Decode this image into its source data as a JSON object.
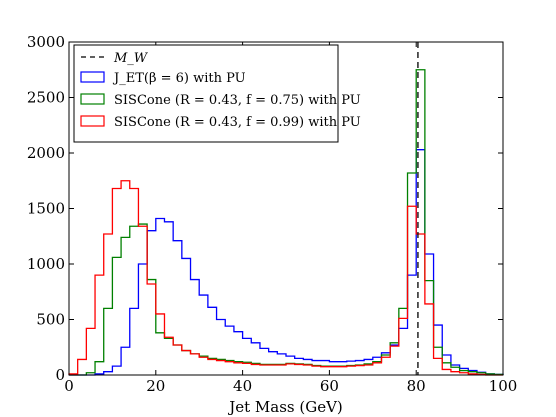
{
  "chart_data": {
    "type": "histogram",
    "xlabel": "Jet Mass (GeV)",
    "ylabel": "",
    "xlim": [
      0,
      100
    ],
    "ylim": [
      0,
      3000
    ],
    "x_ticks": [
      "0",
      "20",
      "40",
      "60",
      "80",
      "100"
    ],
    "y_ticks": [
      "0",
      "500",
      "1000",
      "1500",
      "2000",
      "2500",
      "3000"
    ],
    "grid": false,
    "legend_position": "top-left",
    "bin_width": 2,
    "bin_edges_start": 0,
    "reference_line": {
      "name": "M_W",
      "x": 80.4,
      "style": "dashed",
      "color": "#000000"
    },
    "series": [
      {
        "name": "J_ET(β = 6) with PU",
        "color": "#0000ff",
        "values": [
          0,
          0,
          0,
          10,
          30,
          80,
          250,
          600,
          1000,
          1300,
          1410,
          1380,
          1210,
          1050,
          860,
          720,
          610,
          500,
          440,
          390,
          330,
          290,
          240,
          210,
          190,
          170,
          150,
          140,
          130,
          130,
          120,
          120,
          125,
          130,
          140,
          160,
          200,
          270,
          420,
          900,
          2030,
          1090,
          450,
          180,
          90,
          60,
          40,
          25,
          10,
          5
        ]
      },
      {
        "name": "SISCone (R = 0.43, f = 0.75) with PU",
        "color": "#008000",
        "values": [
          0,
          0,
          20,
          120,
          600,
          1060,
          1240,
          1340,
          1360,
          860,
          380,
          330,
          270,
          220,
          190,
          170,
          150,
          140,
          130,
          120,
          115,
          105,
          95,
          95,
          95,
          105,
          100,
          95,
          85,
          80,
          80,
          80,
          85,
          90,
          100,
          120,
          180,
          290,
          600,
          1820,
          2750,
          850,
          250,
          110,
          70,
          40,
          30,
          20,
          10,
          5
        ]
      },
      {
        "name": "SISCone (R = 0.43, f = 0.99) with PU",
        "color": "#ff0000",
        "values": [
          10,
          140,
          420,
          900,
          1270,
          1680,
          1750,
          1680,
          1340,
          820,
          550,
          340,
          270,
          220,
          190,
          160,
          140,
          130,
          120,
          110,
          105,
          95,
          90,
          90,
          90,
          100,
          95,
          90,
          80,
          75,
          75,
          75,
          80,
          85,
          90,
          110,
          160,
          260,
          510,
          1520,
          1270,
          640,
          150,
          50,
          30,
          20,
          10,
          5,
          0,
          0
        ]
      }
    ]
  },
  "legend": {
    "entries": [
      {
        "label": "M_W",
        "color": "#000000",
        "style": "dashed"
      },
      {
        "label": "J_ET(β = 6) with PU",
        "color": "#0000ff",
        "style": "box"
      },
      {
        "label": "SISCone (R = 0.43, f = 0.75) with PU",
        "color": "#008000",
        "style": "box"
      },
      {
        "label": "SISCone (R = 0.43, f = 0.99) with PU",
        "color": "#ff0000",
        "style": "box"
      }
    ]
  }
}
